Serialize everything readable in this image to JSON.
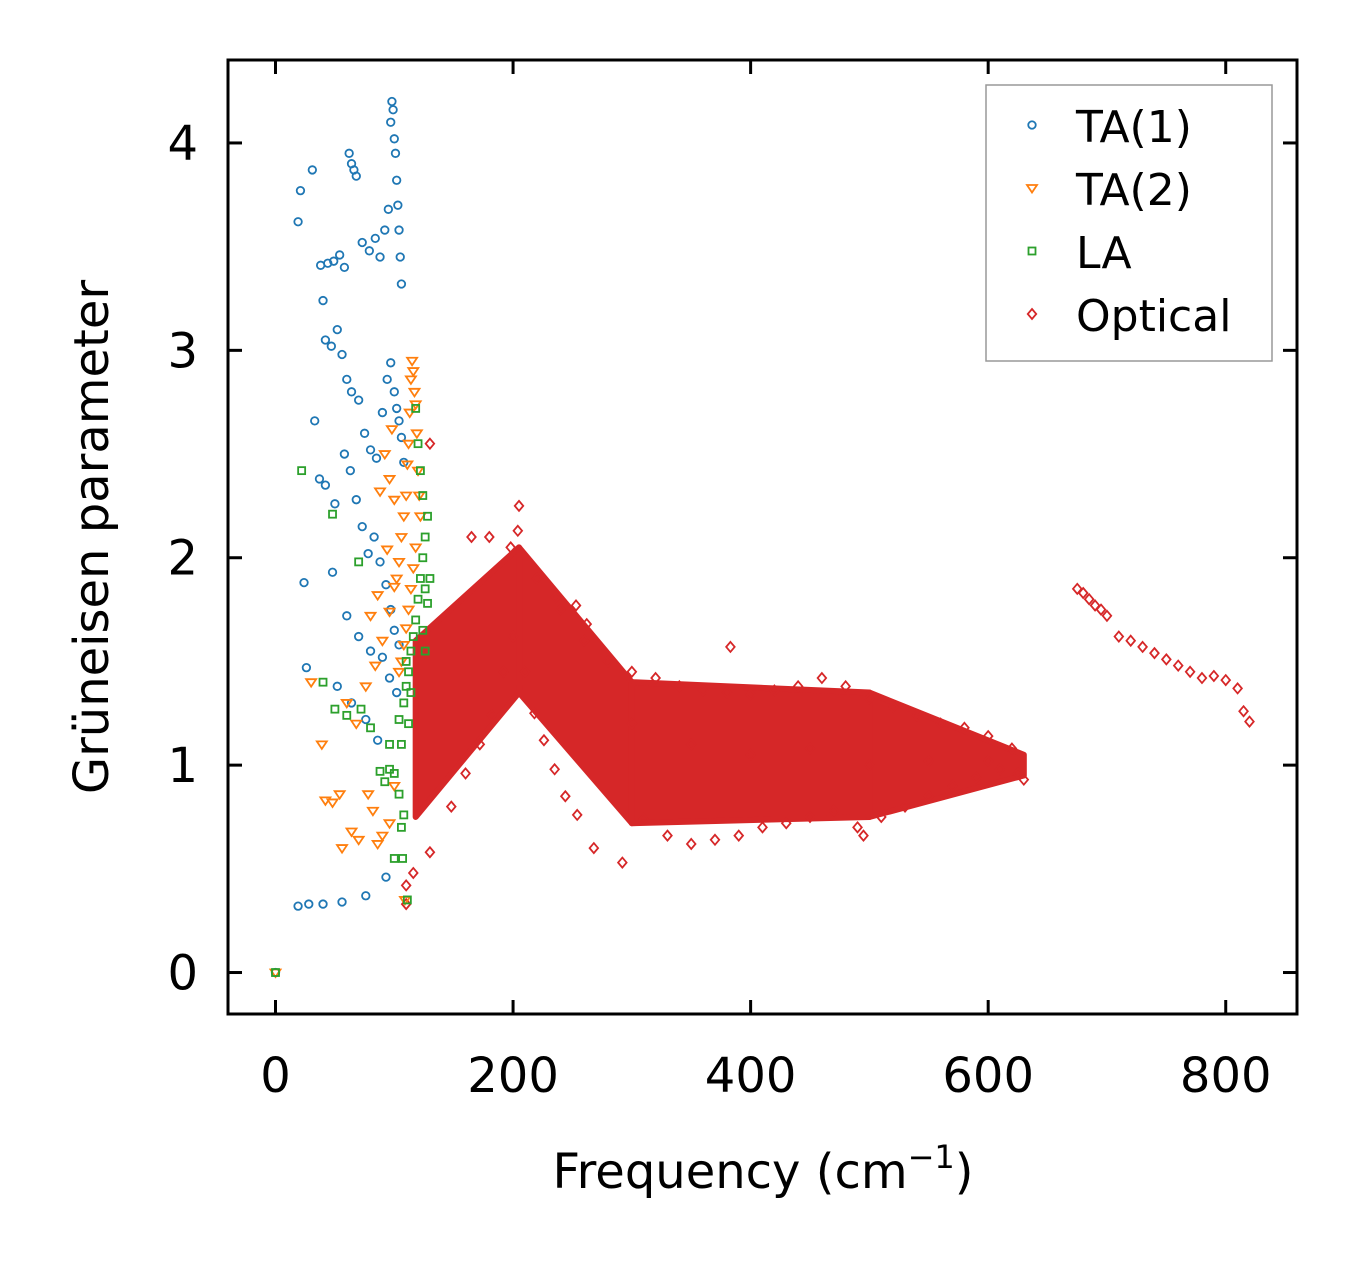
{
  "chart_data": {
    "type": "scatter",
    "title": "",
    "xlabel": "Frequency (cm",
    "xlabel_sup": "−1",
    "xlabel_end": ")",
    "ylabel": "Grüneisen parameter",
    "xlim": [
      -40,
      860
    ],
    "ylim": [
      -0.2,
      4.4
    ],
    "xticks": [
      0,
      200,
      400,
      600,
      800
    ],
    "xtick_labels": [
      "0",
      "200",
      "400",
      "600",
      "800"
    ],
    "yticks": [
      0,
      1,
      2,
      3,
      4
    ],
    "ytick_labels": [
      "0",
      "1",
      "2",
      "3",
      "4"
    ],
    "legend_position": "top-right",
    "series": [
      {
        "name": "TA(1)",
        "marker": "circle",
        "color": "#1f77b4",
        "points": [
          [
            0,
            0
          ],
          [
            19,
            0.32
          ],
          [
            28,
            0.33
          ],
          [
            40,
            0.33
          ],
          [
            56,
            0.34
          ],
          [
            76,
            0.37
          ],
          [
            93,
            0.46
          ],
          [
            19,
            3.62
          ],
          [
            21,
            3.77
          ],
          [
            31,
            3.87
          ],
          [
            38,
            3.41
          ],
          [
            44,
            3.42
          ],
          [
            49,
            3.43
          ],
          [
            54,
            3.46
          ],
          [
            58,
            3.4
          ],
          [
            62,
            3.95
          ],
          [
            64,
            3.9
          ],
          [
            66,
            3.87
          ],
          [
            68,
            3.84
          ],
          [
            73,
            3.52
          ],
          [
            79,
            3.48
          ],
          [
            84,
            3.54
          ],
          [
            88,
            3.45
          ],
          [
            92,
            3.58
          ],
          [
            95,
            3.68
          ],
          [
            97,
            4.1
          ],
          [
            98,
            4.2
          ],
          [
            99,
            4.16
          ],
          [
            100,
            4.02
          ],
          [
            101,
            3.95
          ],
          [
            102,
            3.82
          ],
          [
            103,
            3.7
          ],
          [
            104,
            3.58
          ],
          [
            105,
            3.45
          ],
          [
            106,
            3.32
          ],
          [
            40,
            3.24
          ],
          [
            42,
            3.05
          ],
          [
            47,
            3.02
          ],
          [
            52,
            3.1
          ],
          [
            56,
            2.98
          ],
          [
            60,
            2.86
          ],
          [
            64,
            2.8
          ],
          [
            70,
            2.76
          ],
          [
            75,
            2.6
          ],
          [
            80,
            2.52
          ],
          [
            85,
            2.48
          ],
          [
            90,
            2.7
          ],
          [
            94,
            2.86
          ],
          [
            97,
            2.94
          ],
          [
            100,
            2.8
          ],
          [
            102,
            2.72
          ],
          [
            104,
            2.66
          ],
          [
            106,
            2.58
          ],
          [
            108,
            2.46
          ],
          [
            33,
            2.66
          ],
          [
            37,
            2.38
          ],
          [
            42,
            2.35
          ],
          [
            50,
            2.26
          ],
          [
            58,
            2.5
          ],
          [
            63,
            2.42
          ],
          [
            68,
            2.28
          ],
          [
            73,
            2.15
          ],
          [
            78,
            2.02
          ],
          [
            83,
            2.1
          ],
          [
            88,
            1.98
          ],
          [
            93,
            1.87
          ],
          [
            97,
            1.75
          ],
          [
            100,
            1.65
          ],
          [
            104,
            1.58
          ],
          [
            24,
            1.88
          ],
          [
            48,
            1.93
          ],
          [
            60,
            1.72
          ],
          [
            70,
            1.62
          ],
          [
            80,
            1.55
          ],
          [
            90,
            1.52
          ],
          [
            96,
            1.42
          ],
          [
            102,
            1.35
          ],
          [
            26,
            1.47
          ],
          [
            52,
            1.38
          ],
          [
            64,
            1.3
          ],
          [
            76,
            1.22
          ],
          [
            86,
            1.12
          ]
        ]
      },
      {
        "name": "TA(2)",
        "marker": "triangle-down",
        "color": "#ff7f0e",
        "points": [
          [
            0,
            0
          ],
          [
            109,
            0.35
          ],
          [
            30,
            1.4
          ],
          [
            39,
            1.1
          ],
          [
            42,
            0.83
          ],
          [
            48,
            0.82
          ],
          [
            54,
            0.86
          ],
          [
            56,
            0.6
          ],
          [
            64,
            0.68
          ],
          [
            70,
            0.64
          ],
          [
            78,
            0.86
          ],
          [
            82,
            0.78
          ],
          [
            86,
            0.62
          ],
          [
            90,
            0.66
          ],
          [
            96,
            0.72
          ],
          [
            100,
            0.9
          ],
          [
            60,
            1.3
          ],
          [
            68,
            1.2
          ],
          [
            76,
            1.38
          ],
          [
            84,
            1.48
          ],
          [
            90,
            1.6
          ],
          [
            96,
            1.74
          ],
          [
            100,
            1.86
          ],
          [
            104,
            1.98
          ],
          [
            106,
            2.1
          ],
          [
            108,
            2.2
          ],
          [
            110,
            2.3
          ],
          [
            111,
            2.45
          ],
          [
            112,
            2.55
          ],
          [
            113,
            2.7
          ],
          [
            114,
            2.86
          ],
          [
            115,
            2.95
          ],
          [
            116,
            2.9
          ],
          [
            117,
            2.8
          ],
          [
            118,
            2.74
          ],
          [
            119,
            2.6
          ],
          [
            120,
            2.42
          ],
          [
            121,
            2.3
          ],
          [
            122,
            2.2
          ],
          [
            118,
            2.05
          ],
          [
            116,
            1.95
          ],
          [
            114,
            1.85
          ],
          [
            112,
            1.75
          ],
          [
            110,
            1.66
          ],
          [
            108,
            1.58
          ],
          [
            106,
            1.5
          ],
          [
            104,
            1.45
          ],
          [
            92,
            2.5
          ],
          [
            96,
            2.38
          ],
          [
            100,
            2.28
          ],
          [
            98,
            2.62
          ],
          [
            88,
            2.32
          ],
          [
            94,
            2.04
          ],
          [
            102,
            1.9
          ],
          [
            86,
            1.82
          ],
          [
            80,
            1.72
          ]
        ]
      },
      {
        "name": "LA",
        "marker": "square",
        "color": "#2ca02c",
        "points": [
          [
            0,
            0
          ],
          [
            111,
            0.35
          ],
          [
            22,
            2.42
          ],
          [
            48,
            2.21
          ],
          [
            70,
            1.98
          ],
          [
            40,
            1.4
          ],
          [
            50,
            1.27
          ],
          [
            60,
            1.24
          ],
          [
            72,
            1.27
          ],
          [
            80,
            1.18
          ],
          [
            88,
            0.97
          ],
          [
            92,
            0.92
          ],
          [
            96,
            0.98
          ],
          [
            100,
            0.96
          ],
          [
            104,
            0.86
          ],
          [
            106,
            0.7
          ],
          [
            107,
            0.55
          ],
          [
            108,
            0.76
          ],
          [
            100,
            0.55
          ],
          [
            96,
            1.1
          ],
          [
            104,
            1.22
          ],
          [
            108,
            1.3
          ],
          [
            110,
            1.38
          ],
          [
            112,
            1.45
          ],
          [
            114,
            1.55
          ],
          [
            116,
            1.62
          ],
          [
            118,
            1.7
          ],
          [
            120,
            1.8
          ],
          [
            122,
            1.9
          ],
          [
            124,
            2.0
          ],
          [
            126,
            2.1
          ],
          [
            128,
            2.2
          ],
          [
            124,
            2.3
          ],
          [
            122,
            2.42
          ],
          [
            120,
            2.55
          ],
          [
            118,
            2.72
          ],
          [
            126,
            1.85
          ],
          [
            128,
            1.78
          ],
          [
            130,
            1.9
          ],
          [
            126,
            1.55
          ],
          [
            124,
            1.65
          ],
          [
            110,
            1.5
          ],
          [
            112,
            1.2
          ],
          [
            106,
            1.1
          ],
          [
            114,
            1.35
          ]
        ]
      },
      {
        "name": "Optical",
        "marker": "diamond",
        "color": "#d62728",
        "points": [
          [
            130,
            2.55
          ],
          [
            205,
            2.25
          ],
          [
            204,
            2.13
          ],
          [
            383,
            1.57
          ],
          [
            253,
            1.77
          ],
          [
            236,
            1.81
          ],
          [
            262,
            1.68
          ],
          [
            110,
            0.33
          ],
          [
            110,
            0.42
          ],
          [
            116,
            0.48
          ],
          [
            130,
            0.58
          ],
          [
            148,
            0.8
          ],
          [
            160,
            0.96
          ],
          [
            172,
            1.1
          ],
          [
            182,
            1.24
          ],
          [
            192,
            1.45
          ],
          [
            200,
            1.62
          ],
          [
            210,
            1.45
          ],
          [
            218,
            1.25
          ],
          [
            226,
            1.12
          ],
          [
            235,
            0.98
          ],
          [
            244,
            0.85
          ],
          [
            254,
            0.76
          ],
          [
            268,
            0.6
          ],
          [
            292,
            0.53
          ],
          [
            310,
            0.74
          ],
          [
            330,
            0.66
          ],
          [
            350,
            0.62
          ],
          [
            370,
            0.64
          ],
          [
            390,
            0.66
          ],
          [
            410,
            0.7
          ],
          [
            430,
            0.72
          ],
          [
            450,
            0.75
          ],
          [
            470,
            0.78
          ],
          [
            490,
            0.7
          ],
          [
            495,
            0.66
          ],
          [
            510,
            0.75
          ],
          [
            530,
            0.8
          ],
          [
            550,
            0.85
          ],
          [
            570,
            0.9
          ],
          [
            590,
            0.94
          ],
          [
            610,
            0.98
          ],
          [
            625,
            0.96
          ],
          [
            630,
            0.93
          ],
          [
            165,
            2.1
          ],
          [
            180,
            2.1
          ],
          [
            198,
            2.05
          ],
          [
            220,
            1.9
          ],
          [
            240,
            1.75
          ],
          [
            260,
            1.6
          ],
          [
            280,
            1.5
          ],
          [
            300,
            1.45
          ],
          [
            320,
            1.42
          ],
          [
            340,
            1.38
          ],
          [
            360,
            1.36
          ],
          [
            380,
            1.35
          ],
          [
            400,
            1.34
          ],
          [
            420,
            1.36
          ],
          [
            440,
            1.38
          ],
          [
            460,
            1.42
          ],
          [
            480,
            1.38
          ],
          [
            500,
            1.32
          ],
          [
            520,
            1.28
          ],
          [
            540,
            1.24
          ],
          [
            560,
            1.2
          ],
          [
            580,
            1.18
          ],
          [
            600,
            1.14
          ],
          [
            620,
            1.08
          ],
          [
            300,
            1.2
          ],
          [
            350,
            1.1
          ],
          [
            400,
            1.05
          ],
          [
            450,
            1.08
          ],
          [
            500,
            1.0
          ],
          [
            550,
            1.02
          ],
          [
            600,
            1.02
          ],
          [
            675,
            1.85
          ],
          [
            680,
            1.83
          ],
          [
            685,
            1.8
          ],
          [
            690,
            1.77
          ],
          [
            695,
            1.75
          ],
          [
            700,
            1.72
          ],
          [
            710,
            1.62
          ],
          [
            720,
            1.6
          ],
          [
            730,
            1.57
          ],
          [
            740,
            1.54
          ],
          [
            750,
            1.51
          ],
          [
            760,
            1.48
          ],
          [
            770,
            1.45
          ],
          [
            780,
            1.42
          ],
          [
            790,
            1.43
          ],
          [
            800,
            1.41
          ],
          [
            810,
            1.37
          ],
          [
            815,
            1.26
          ],
          [
            820,
            1.21
          ]
        ],
        "dense_regions": [
          {
            "x": [
              118,
              205
            ],
            "lower": [
              0.75,
              1.35
            ],
            "upper": [
              1.6,
              2.05
            ]
          },
          {
            "x": [
              205,
              300
            ],
            "lower": [
              1.35,
              0.72
            ],
            "upper": [
              2.05,
              1.4
            ]
          },
          {
            "x": [
              300,
              500
            ],
            "lower": [
              0.72,
              0.75
            ],
            "upper": [
              1.4,
              1.35
            ]
          },
          {
            "x": [
              500,
              630
            ],
            "lower": [
              0.75,
              0.95
            ],
            "upper": [
              1.35,
              1.05
            ]
          }
        ]
      }
    ]
  }
}
